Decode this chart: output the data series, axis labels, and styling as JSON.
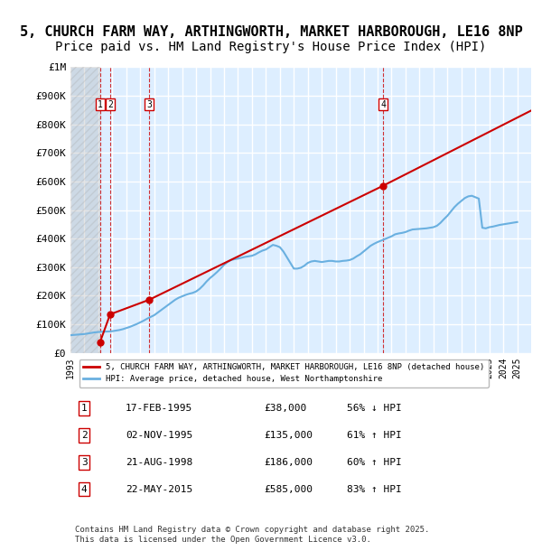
{
  "title_line1": "5, CHURCH FARM WAY, ARTHINGWORTH, MARKET HARBOROUGH, LE16 8NP",
  "title_line2": "Price paid vs. HM Land Registry's House Price Index (HPI)",
  "title_fontsize": 11,
  "subtitle_fontsize": 10,
  "ylabel_ticks": [
    "£0",
    "£100K",
    "£200K",
    "£300K",
    "£400K",
    "£500K",
    "£600K",
    "£700K",
    "£800K",
    "£900K",
    "£1M"
  ],
  "ytick_values": [
    0,
    100000,
    200000,
    300000,
    400000,
    500000,
    600000,
    700000,
    800000,
    900000,
    1000000
  ],
  "ylim": [
    0,
    1000000
  ],
  "xlim_start": 1993,
  "xlim_end": 2026,
  "xtick_years": [
    1993,
    1994,
    1995,
    1996,
    1997,
    1998,
    1999,
    2000,
    2001,
    2002,
    2003,
    2004,
    2005,
    2006,
    2007,
    2008,
    2009,
    2010,
    2011,
    2012,
    2013,
    2014,
    2015,
    2016,
    2017,
    2018,
    2019,
    2020,
    2021,
    2022,
    2023,
    2024,
    2025
  ],
  "hpi_line_color": "#6ab0e0",
  "property_line_color": "#cc0000",
  "sale_points": [
    {
      "num": 1,
      "year": 1995.12,
      "value": 38000
    },
    {
      "num": 2,
      "year": 1995.84,
      "value": 135000
    },
    {
      "num": 3,
      "year": 1998.64,
      "value": 186000
    },
    {
      "num": 4,
      "year": 2015.39,
      "value": 585000
    }
  ],
  "sale_vline_color": "#cc0000",
  "background_color": "#ddeeff",
  "plot_bg_color": "#ddeeff",
  "hatch_color": "#cccccc",
  "grid_color": "#ffffff",
  "legend_property": "5, CHURCH FARM WAY, ARTHINGWORTH, MARKET HARBOROUGH, LE16 8NP (detached house)",
  "legend_hpi": "HPI: Average price, detached house, West Northamptonshire",
  "table_data": [
    {
      "num": 1,
      "date": "17-FEB-1995",
      "price": "£38,000",
      "hpi": "56% ↓ HPI"
    },
    {
      "num": 2,
      "date": "02-NOV-1995",
      "price": "£135,000",
      "hpi": "61% ↑ HPI"
    },
    {
      "num": 3,
      "date": "21-AUG-1998",
      "price": "£186,000",
      "hpi": "60% ↑ HPI"
    },
    {
      "num": 4,
      "date": "22-MAY-2015",
      "price": "£585,000",
      "hpi": "83% ↑ HPI"
    }
  ],
  "footer": "Contains HM Land Registry data © Crown copyright and database right 2025.\nThis data is licensed under the Open Government Licence v3.0.",
  "hpi_data": {
    "years": [
      1993.0,
      1993.25,
      1993.5,
      1993.75,
      1994.0,
      1994.25,
      1994.5,
      1994.75,
      1995.0,
      1995.25,
      1995.5,
      1995.75,
      1996.0,
      1996.25,
      1996.5,
      1996.75,
      1997.0,
      1997.25,
      1997.5,
      1997.75,
      1998.0,
      1998.25,
      1998.5,
      1998.75,
      1999.0,
      1999.25,
      1999.5,
      1999.75,
      2000.0,
      2000.25,
      2000.5,
      2000.75,
      2001.0,
      2001.25,
      2001.5,
      2001.75,
      2002.0,
      2002.25,
      2002.5,
      2002.75,
      2003.0,
      2003.25,
      2003.5,
      2003.75,
      2004.0,
      2004.25,
      2004.5,
      2004.75,
      2005.0,
      2005.25,
      2005.5,
      2005.75,
      2006.0,
      2006.25,
      2006.5,
      2006.75,
      2007.0,
      2007.25,
      2007.5,
      2007.75,
      2008.0,
      2008.25,
      2008.5,
      2008.75,
      2009.0,
      2009.25,
      2009.5,
      2009.75,
      2010.0,
      2010.25,
      2010.5,
      2010.75,
      2011.0,
      2011.25,
      2011.5,
      2011.75,
      2012.0,
      2012.25,
      2012.5,
      2012.75,
      2013.0,
      2013.25,
      2013.5,
      2013.75,
      2014.0,
      2014.25,
      2014.5,
      2014.75,
      2015.0,
      2015.25,
      2015.5,
      2015.75,
      2016.0,
      2016.25,
      2016.5,
      2016.75,
      2017.0,
      2017.25,
      2017.5,
      2017.75,
      2018.0,
      2018.25,
      2018.5,
      2018.75,
      2019.0,
      2019.25,
      2019.5,
      2019.75,
      2020.0,
      2020.25,
      2020.5,
      2020.75,
      2021.0,
      2021.25,
      2021.5,
      2021.75,
      2022.0,
      2022.25,
      2022.5,
      2022.75,
      2023.0,
      2023.25,
      2023.5,
      2023.75,
      2024.0,
      2024.25,
      2024.5,
      2024.75,
      2025.0
    ],
    "values": [
      62000,
      63000,
      64000,
      65000,
      66000,
      68000,
      70000,
      72000,
      73000,
      74000,
      74500,
      75000,
      76000,
      78000,
      80000,
      83000,
      87000,
      91000,
      96000,
      101000,
      107000,
      113000,
      120000,
      126000,
      132000,
      141000,
      150000,
      159000,
      168000,
      177000,
      186000,
      193000,
      198000,
      203000,
      207000,
      210000,
      215000,
      224000,
      236000,
      250000,
      262000,
      272000,
      283000,
      295000,
      308000,
      318000,
      325000,
      328000,
      330000,
      333000,
      336000,
      338000,
      340000,
      345000,
      352000,
      358000,
      362000,
      370000,
      378000,
      375000,
      370000,
      355000,
      335000,
      315000,
      295000,
      295000,
      298000,
      305000,
      315000,
      320000,
      322000,
      320000,
      318000,
      320000,
      322000,
      322000,
      320000,
      320000,
      322000,
      323000,
      325000,
      330000,
      338000,
      345000,
      355000,
      365000,
      375000,
      382000,
      388000,
      393000,
      398000,
      403000,
      408000,
      415000,
      418000,
      420000,
      423000,
      428000,
      432000,
      433000,
      434000,
      435000,
      436000,
      438000,
      440000,
      445000,
      455000,
      468000,
      480000,
      495000,
      510000,
      522000,
      532000,
      542000,
      548000,
      550000,
      545000,
      540000,
      438000,
      436000,
      440000,
      442000,
      445000,
      448000,
      450000,
      452000,
      454000,
      456000,
      458000
    ]
  },
  "property_data": {
    "years": [
      1995.12,
      1995.84,
      1998.64,
      2015.39
    ],
    "values": [
      38000,
      135000,
      186000,
      585000
    ],
    "line_years": [
      1993.0,
      1993.5,
      1994.0,
      1994.5,
      1995.0,
      1995.12,
      1995.5,
      1995.84,
      1996.0,
      1996.5,
      1997.0,
      1997.5,
      1998.0,
      1998.5,
      1998.64,
      1999.0,
      1999.5,
      2000.0,
      2000.5,
      2001.0,
      2001.5,
      2002.0,
      2002.5,
      2003.0,
      2003.5,
      2004.0,
      2004.5,
      2005.0,
      2005.5,
      2006.0,
      2006.5,
      2007.0,
      2007.5,
      2008.0,
      2008.5,
      2009.0,
      2009.5,
      2010.0,
      2010.5,
      2011.0,
      2011.5,
      2012.0,
      2012.5,
      2013.0,
      2013.5,
      2014.0,
      2014.5,
      2015.0,
      2015.39,
      2015.5,
      2016.0,
      2016.5,
      2017.0,
      2017.5,
      2018.0,
      2018.5,
      2019.0,
      2019.5,
      2020.0,
      2020.5,
      2021.0,
      2021.5,
      2022.0,
      2022.5,
      2023.0,
      2023.5,
      2024.0,
      2024.5,
      2025.0
    ],
    "line_values": [
      null,
      null,
      null,
      null,
      null,
      38000,
      null,
      135000,
      null,
      null,
      null,
      null,
      null,
      null,
      186000,
      null,
      null,
      null,
      null,
      null,
      null,
      null,
      null,
      null,
      null,
      null,
      null,
      null,
      null,
      null,
      null,
      null,
      null,
      null,
      null,
      null,
      null,
      null,
      null,
      null,
      null,
      null,
      null,
      null,
      null,
      null,
      null,
      null,
      585000,
      null,
      null,
      null,
      null,
      null,
      null,
      null,
      null,
      null,
      null,
      null,
      null,
      null,
      null,
      null,
      null,
      null,
      null,
      null
    ]
  }
}
